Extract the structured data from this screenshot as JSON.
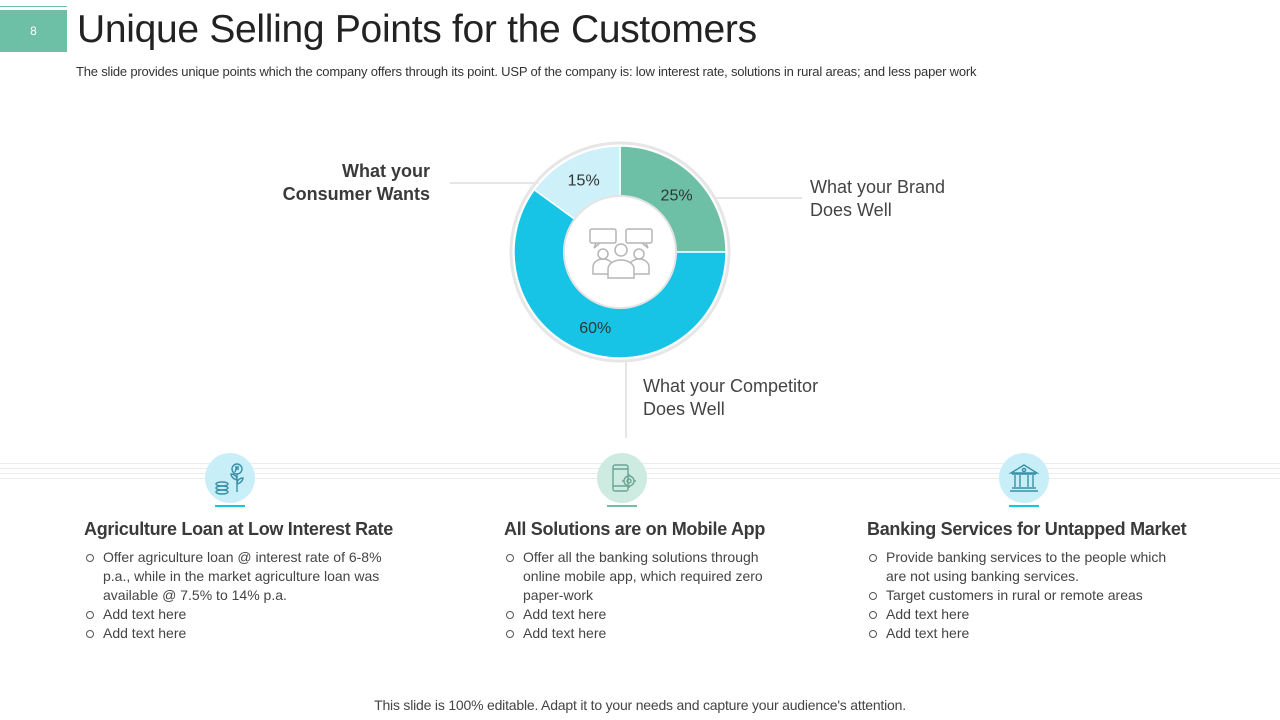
{
  "slide_number": "8",
  "title": "Unique Selling Points for the Customers",
  "subtitle": "The slide provides unique points which the company offers through its point. USP of the company is: low interest rate, solutions in rural areas; and less paper work",
  "center_icon": "people-group-icon",
  "callouts": {
    "consumer": "What your Consumer Wants",
    "brand": "What your Brand Does Well",
    "competitor": "What your Competitor Does Well"
  },
  "colors": {
    "brand": "#6dc0a6",
    "competitor": "#18c4e6",
    "consumer": "#cdf0f9"
  },
  "chart_data": {
    "type": "pie",
    "variant": "donut",
    "series": [
      {
        "name": "What your Brand Does Well",
        "value": 25,
        "label": "25%",
        "color": "#6dc0a6"
      },
      {
        "name": "What your Competitor Does Well",
        "value": 60,
        "label": "60%",
        "color": "#18c4e6"
      },
      {
        "name": "What your Consumer Wants",
        "value": 15,
        "label": "15%",
        "color": "#cdf0f9"
      }
    ]
  },
  "features": [
    {
      "icon": "money-plant-icon",
      "title": "Agriculture Loan at Low Interest Rate",
      "bullets": [
        "Offer agriculture loan @ interest rate of 6-8% p.a., while in the market agriculture loan was available @ 7.5% to 14% p.a.",
        "Add text here",
        "Add text here"
      ]
    },
    {
      "icon": "mobile-settings-icon",
      "title": "All Solutions are on Mobile App",
      "bullets": [
        "Offer all the banking solutions through online mobile app, which required zero paper-work",
        "Add text here",
        "Add text here"
      ]
    },
    {
      "icon": "bank-icon",
      "title": "Banking Services for Untapped Market",
      "bullets": [
        "Provide banking services to the people which are not using banking services.",
        "Target customers in rural or remote areas",
        "Add text here",
        "Add text here"
      ]
    }
  ],
  "footer": "This slide is 100% editable. Adapt it to your needs and capture your audience's attention."
}
